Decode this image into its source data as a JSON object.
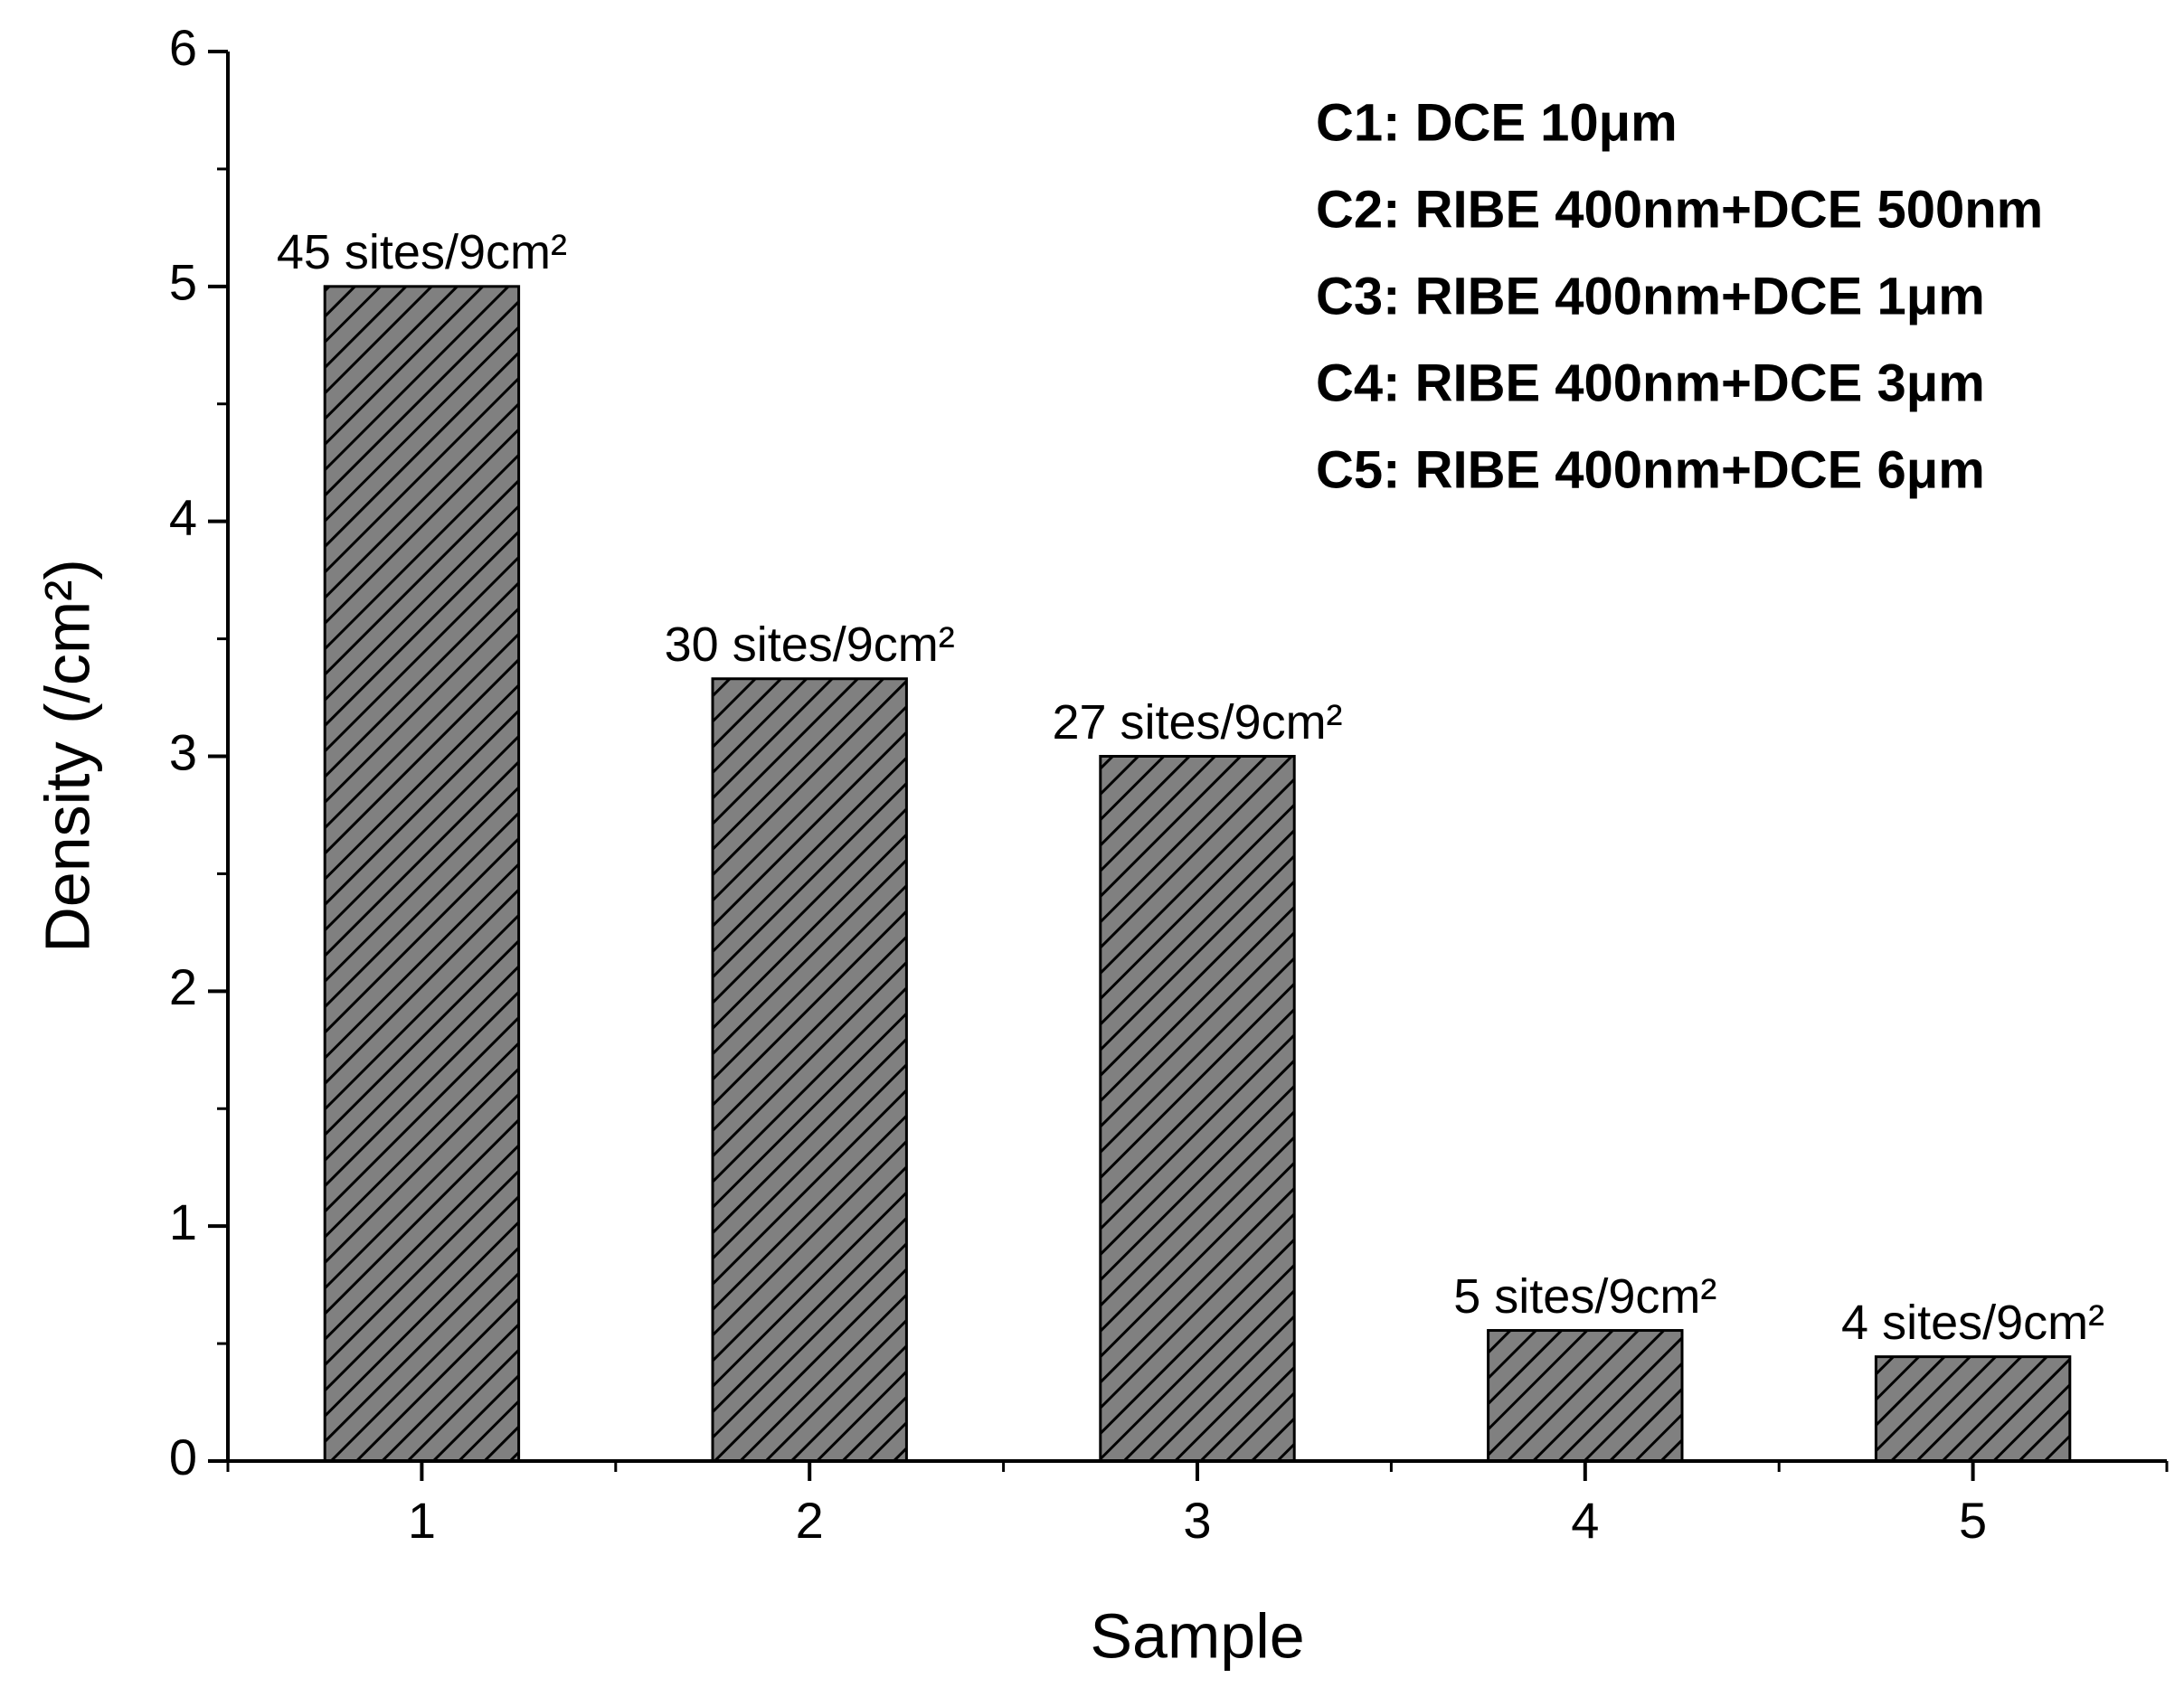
{
  "chart_data": {
    "type": "bar",
    "xlabel": "Sample",
    "ylabel": "Density (/cm²)",
    "x": [
      1,
      2,
      3,
      4,
      5
    ],
    "values": [
      5,
      3.33,
      3,
      0.556,
      0.444
    ],
    "value_labels": [
      "45 sites/9cm²",
      "30 sites/9cm²",
      "27 sites/9cm²",
      "5 sites/9cm²",
      "4 sites/9cm²"
    ],
    "color": "#808080",
    "xlim": [
      0.5,
      5.5
    ],
    "xticks": [
      1,
      2,
      3,
      4,
      5
    ],
    "ylim": [
      0,
      6
    ],
    "yticks": [
      0,
      1,
      2,
      3,
      4,
      5,
      6
    ],
    "grid": false,
    "annotations": [
      "C1: DCE 10μm",
      "C2: RIBE 400nm+DCE 500nm",
      "C3: RIBE 400nm+DCE 1μm",
      "C4: RIBE 400nm+DCE 3μm",
      "C5: RIBE 400nm+DCE 6μm"
    ]
  }
}
